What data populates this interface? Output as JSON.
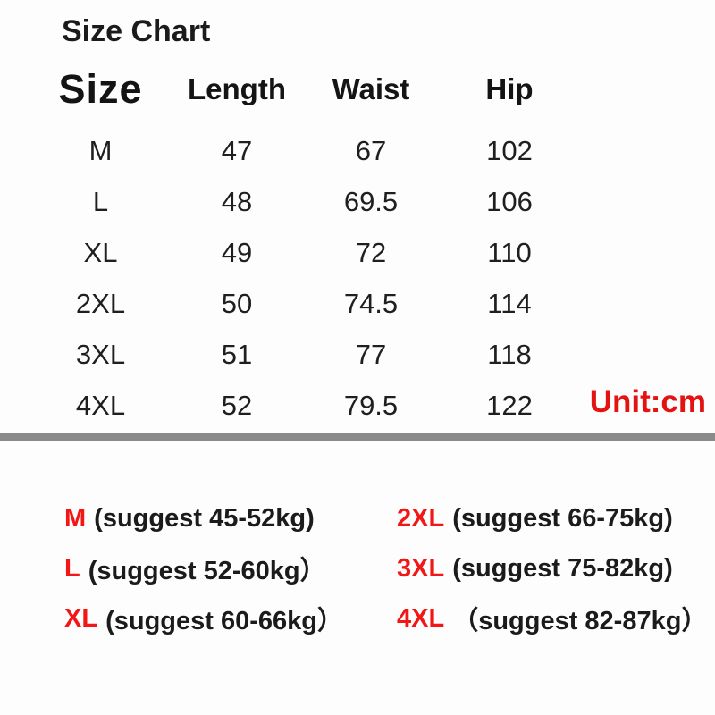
{
  "title": "Size Chart",
  "unit_label": "Unit:cm",
  "colors": {
    "accent_red": "#e51212",
    "suggest_red": "#f31616",
    "divider_gray": "#8a8a8a",
    "text_black": "#161616",
    "background": "#fdfdfd"
  },
  "table": {
    "headers": [
      "Size",
      "Length",
      "Waist",
      "Hip"
    ],
    "rows": [
      {
        "size": "M",
        "length": "47",
        "waist": "67",
        "hip": "102"
      },
      {
        "size": "L",
        "length": "48",
        "waist": "69.5",
        "hip": "106"
      },
      {
        "size": "XL",
        "length": "49",
        "waist": "72",
        "hip": "110"
      },
      {
        "size": "2XL",
        "length": "50",
        "waist": "74.5",
        "hip": "114"
      },
      {
        "size": "3XL",
        "length": "51",
        "waist": "77",
        "hip": "118"
      },
      {
        "size": "4XL",
        "length": "52",
        "waist": "79.5",
        "hip": "122"
      }
    ]
  },
  "weight_suggestions": {
    "left": [
      {
        "size": "M",
        "note": "(suggest 45-52kg)"
      },
      {
        "size": "L",
        "note": "(suggest 52-60kg）"
      },
      {
        "size": "XL",
        "note": "(suggest 60-66kg）"
      }
    ],
    "right": [
      {
        "size": "2XL",
        "note": "(suggest 66-75kg)"
      },
      {
        "size": "3XL",
        "note": "(suggest 75-82kg)"
      },
      {
        "size": "4XL",
        "note": "（suggest 82-87kg）"
      }
    ]
  },
  "chart_data": {
    "type": "table",
    "title": "Size Chart",
    "unit": "cm",
    "columns": [
      "Size",
      "Length",
      "Waist",
      "Hip"
    ],
    "rows": [
      [
        "M",
        47,
        67,
        102
      ],
      [
        "L",
        48,
        69.5,
        106
      ],
      [
        "XL",
        49,
        72,
        110
      ],
      [
        "2XL",
        50,
        74.5,
        114
      ],
      [
        "3XL",
        51,
        77,
        118
      ],
      [
        "4XL",
        52,
        79.5,
        122
      ]
    ],
    "weight_suggestions_kg": {
      "M": "45-52",
      "L": "52-60",
      "XL": "60-66",
      "2XL": "66-75",
      "3XL": "75-82",
      "4XL": "82-87"
    }
  }
}
